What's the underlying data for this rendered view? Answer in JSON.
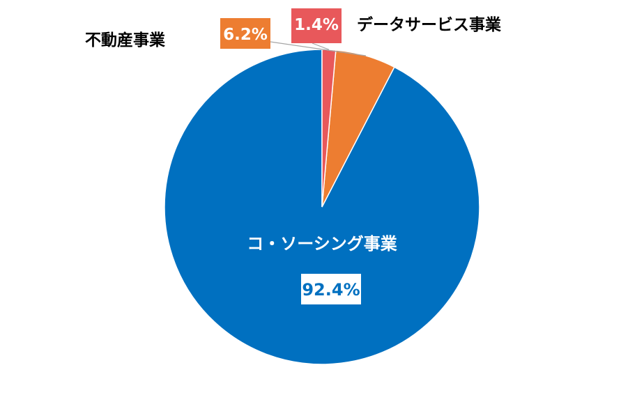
{
  "chart_data": {
    "type": "pie",
    "categories": [
      "コ・ソーシング事業",
      "不動産事業",
      "データサービス事業"
    ],
    "values": [
      92.4,
      6.2,
      1.4
    ],
    "value_labels": [
      "92.4%",
      "6.2%",
      "1.4%"
    ],
    "colors": [
      "#0070C0",
      "#ED7D31",
      "#E8585B"
    ],
    "start_angle": "12 o'clock",
    "direction": "counterclockwise",
    "legend": "none"
  }
}
